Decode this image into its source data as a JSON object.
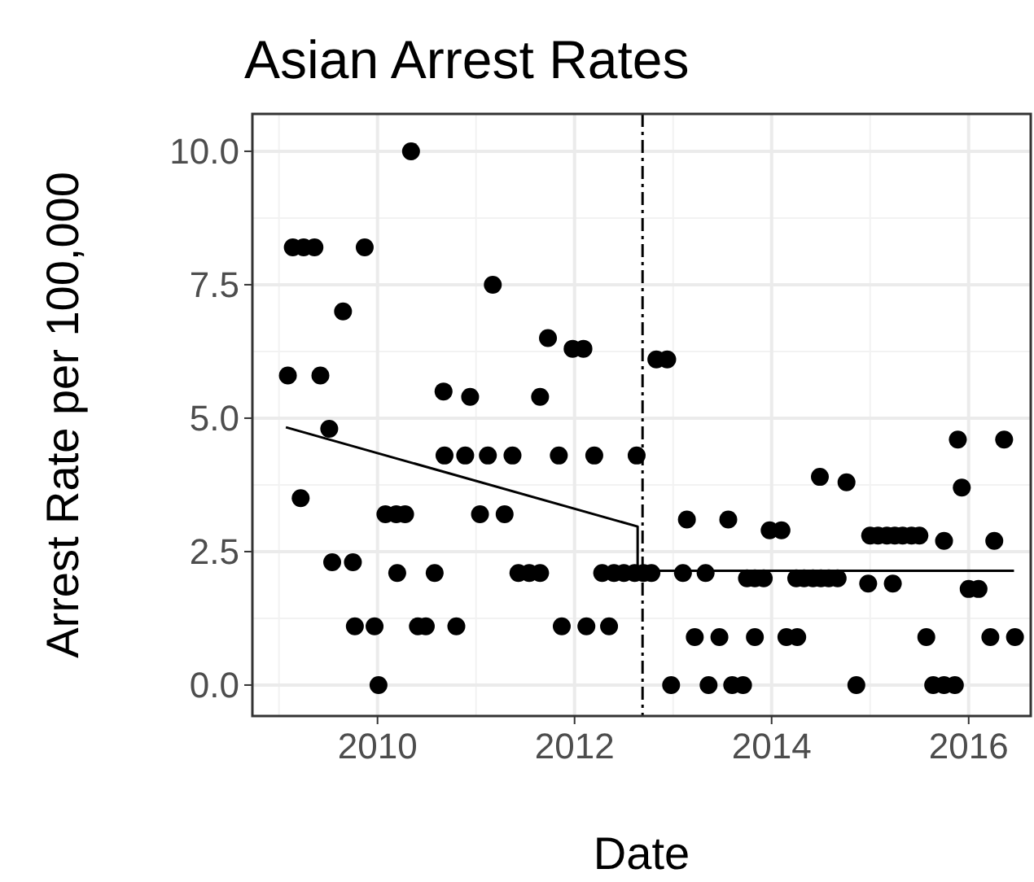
{
  "chart_data": {
    "type": "scatter",
    "title": "Asian Arrest Rates",
    "xlabel": "Date",
    "ylabel": "Arrest Rate per 100,000",
    "xlim": [
      2008.73,
      2016.63
    ],
    "xticks": [
      2010,
      2012,
      2014,
      2016
    ],
    "ylim": [
      -0.58,
      10.7
    ],
    "yticks": [
      {
        "value": 0,
        "label": "0.0"
      },
      {
        "value": 2.5,
        "label": "2.5"
      },
      {
        "value": 5,
        "label": "5.0"
      },
      {
        "value": 7.5,
        "label": "7.5"
      },
      {
        "value": 10,
        "label": "10.0"
      }
    ],
    "grid": true,
    "marker": "circle",
    "ref_lines": [
      {
        "axis": "x",
        "value": 2012.69,
        "line_style": "dashed",
        "color": "#000000"
      }
    ],
    "series": [
      {
        "color": "#000000",
        "x": [
          2010.34,
          2009.14,
          2009.25,
          2009.36,
          2009.87,
          2011.17,
          2009.65,
          2011.73,
          2011.98,
          2012.09,
          2009.09,
          2009.42,
          2010.67,
          2010.94,
          2011.65,
          2009.51,
          2010.68,
          2010.89,
          2011.12,
          2011.37,
          2011.84,
          2012.2,
          2012.63,
          2009.22,
          2010.08,
          2010.19,
          2010.28,
          2011.04,
          2011.29,
          2009.54,
          2009.75,
          2010.2,
          2010.58,
          2011.43,
          2011.54,
          2011.65,
          2012.28,
          2012.4,
          2012.5,
          2012.61,
          2009.77,
          2009.97,
          2010.41,
          2010.49,
          2010.8,
          2011.87,
          2012.12,
          2012.35,
          2010.01,
          2012.83,
          2012.94,
          2015.89,
          2016.36,
          2014.49,
          2014.76,
          2015.93,
          2013.14,
          2013.56,
          2013.98,
          2014.1,
          2015.0,
          2015.08,
          2015.17,
          2015.25,
          2015.33,
          2015.42,
          2015.5,
          2015.75,
          2016.26,
          2012.7,
          2012.78,
          2013.1,
          2013.33,
          2013.75,
          2013.83,
          2013.92,
          2014.25,
          2014.33,
          2014.42,
          2014.5,
          2014.58,
          2014.67,
          2014.98,
          2015.23,
          2016.0,
          2016.1,
          2013.22,
          2013.47,
          2013.83,
          2014.15,
          2014.26,
          2015.57,
          2016.22,
          2016.47,
          2012.98,
          2013.36,
          2013.6,
          2013.71,
          2014.86,
          2015.64,
          2015.75,
          2015.86
        ],
        "values": [
          10.0,
          8.2,
          8.2,
          8.2,
          8.2,
          7.5,
          7.0,
          6.5,
          6.3,
          6.3,
          5.8,
          5.8,
          5.5,
          5.4,
          5.4,
          4.8,
          4.3,
          4.3,
          4.3,
          4.3,
          4.3,
          4.3,
          4.3,
          3.5,
          3.2,
          3.2,
          3.2,
          3.2,
          3.2,
          2.3,
          2.3,
          2.1,
          2.1,
          2.1,
          2.1,
          2.1,
          2.1,
          2.1,
          2.1,
          2.1,
          1.1,
          1.1,
          1.1,
          1.1,
          1.1,
          1.1,
          1.1,
          1.1,
          0.0,
          6.1,
          6.1,
          4.6,
          4.6,
          3.9,
          3.8,
          3.7,
          3.1,
          3.1,
          2.9,
          2.9,
          2.8,
          2.8,
          2.8,
          2.8,
          2.8,
          2.8,
          2.8,
          2.7,
          2.7,
          2.1,
          2.1,
          2.1,
          2.1,
          2.0,
          2.0,
          2.0,
          2.0,
          2.0,
          2.0,
          2.0,
          2.0,
          2.0,
          1.9,
          1.9,
          1.8,
          1.8,
          0.9,
          0.9,
          0.9,
          0.9,
          0.9,
          0.9,
          0.9,
          0.9,
          0.0,
          0.0,
          0.0,
          0.0,
          0.0,
          0.0,
          0.0,
          0.0
        ]
      },
      {
        "type": "line",
        "color": "#000000",
        "marker": "none",
        "x": [
          2009.07,
          2012.64,
          2012.64,
          2016.46
        ],
        "values": [
          4.83,
          2.97,
          2.14,
          2.14
        ]
      }
    ]
  }
}
